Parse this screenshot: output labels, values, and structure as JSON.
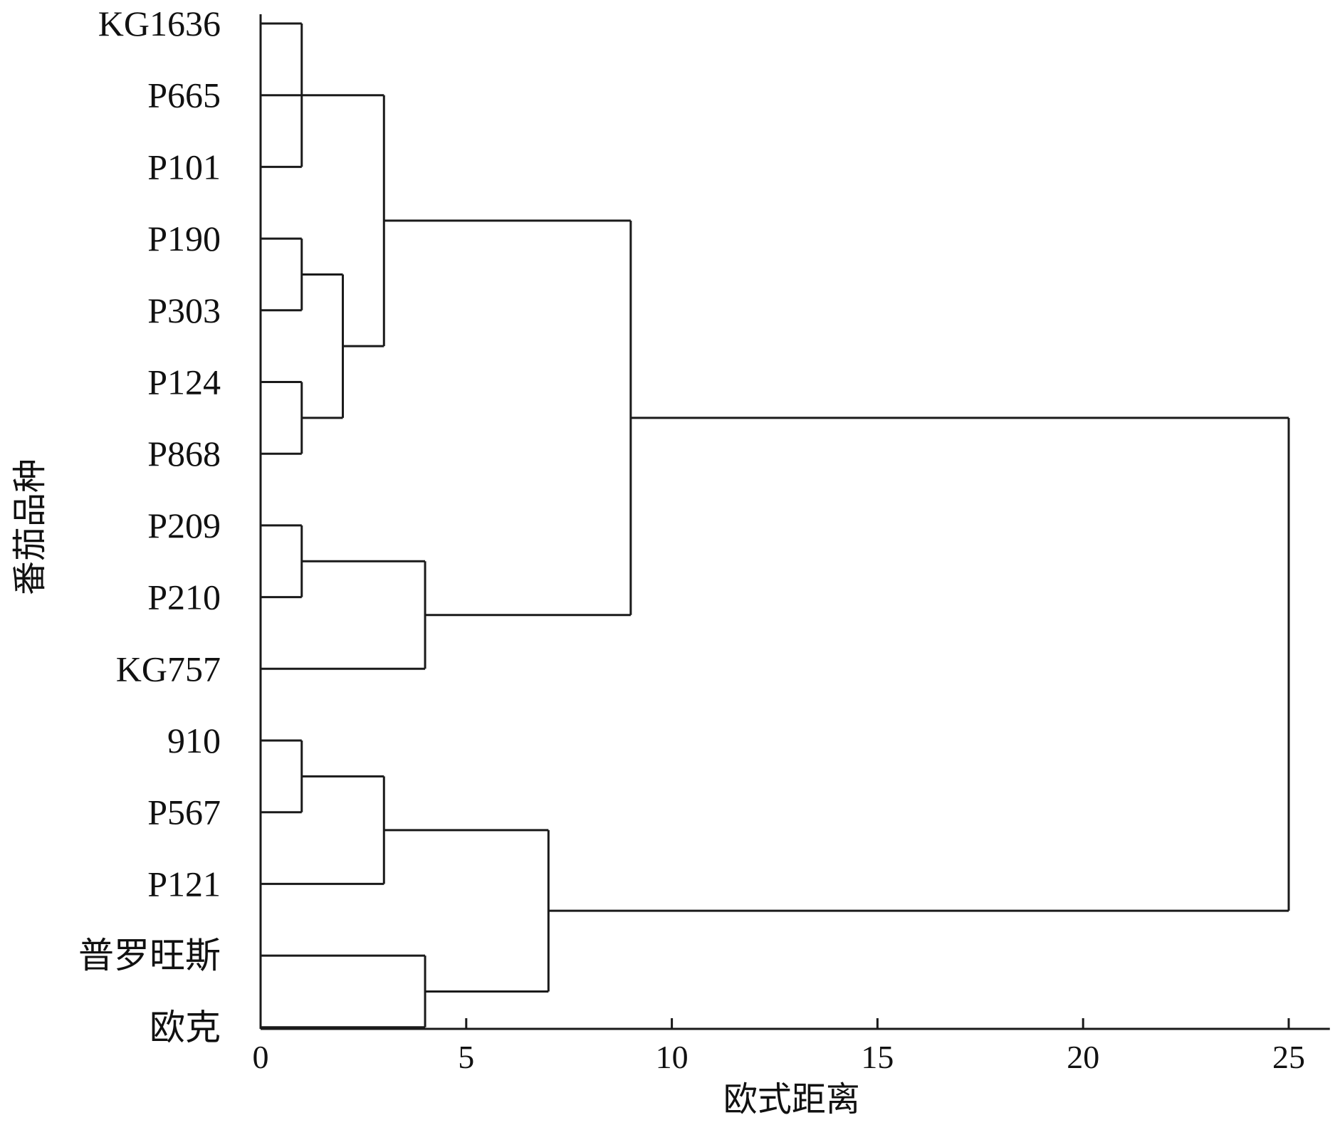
{
  "chart_data": {
    "type": "dendrogram",
    "title": "",
    "xlabel": "欧式距离",
    "ylabel": "番茄品种",
    "xlim": [
      0,
      26
    ],
    "xticks": [
      0,
      5,
      10,
      15,
      20,
      25
    ],
    "xtick_labels": [
      "0",
      "5",
      "10",
      "15",
      "20",
      "25"
    ],
    "leaves": [
      "KG1636",
      "P665",
      "P101",
      "P190",
      "P303",
      "P124",
      "P868",
      "P209",
      "P210",
      "KG757",
      "910",
      "P567",
      "P121",
      "普罗旺斯",
      "欧克"
    ],
    "merges": [
      {
        "id": "m1",
        "children": [
          "KG1636",
          "P101"
        ],
        "distance": 1
      },
      {
        "id": "m2",
        "children": [
          "P190",
          "P303"
        ],
        "distance": 1
      },
      {
        "id": "m3",
        "children": [
          "P124",
          "P868"
        ],
        "distance": 1
      },
      {
        "id": "m4",
        "children": [
          "m2",
          "m3"
        ],
        "distance": 2
      },
      {
        "id": "m5",
        "children": [
          "P665",
          "m4"
        ],
        "distance": 3
      },
      {
        "id": "m6",
        "children": [
          "P209",
          "P210"
        ],
        "distance": 1
      },
      {
        "id": "m7",
        "children": [
          "m6",
          "KG757"
        ],
        "distance": 4
      },
      {
        "id": "m8",
        "children": [
          "m5",
          "m7"
        ],
        "distance": 9
      },
      {
        "id": "m9",
        "children": [
          "910",
          "P567"
        ],
        "distance": 1
      },
      {
        "id": "m10",
        "children": [
          "m9",
          "P121"
        ],
        "distance": 3
      },
      {
        "id": "m11",
        "children": [
          "普罗旺斯",
          "欧克"
        ],
        "distance": 4
      },
      {
        "id": "m12",
        "children": [
          "m10",
          "m11"
        ],
        "distance": 7
      },
      {
        "id": "m13",
        "children": [
          "m8",
          "m12"
        ],
        "distance": 25
      }
    ]
  }
}
